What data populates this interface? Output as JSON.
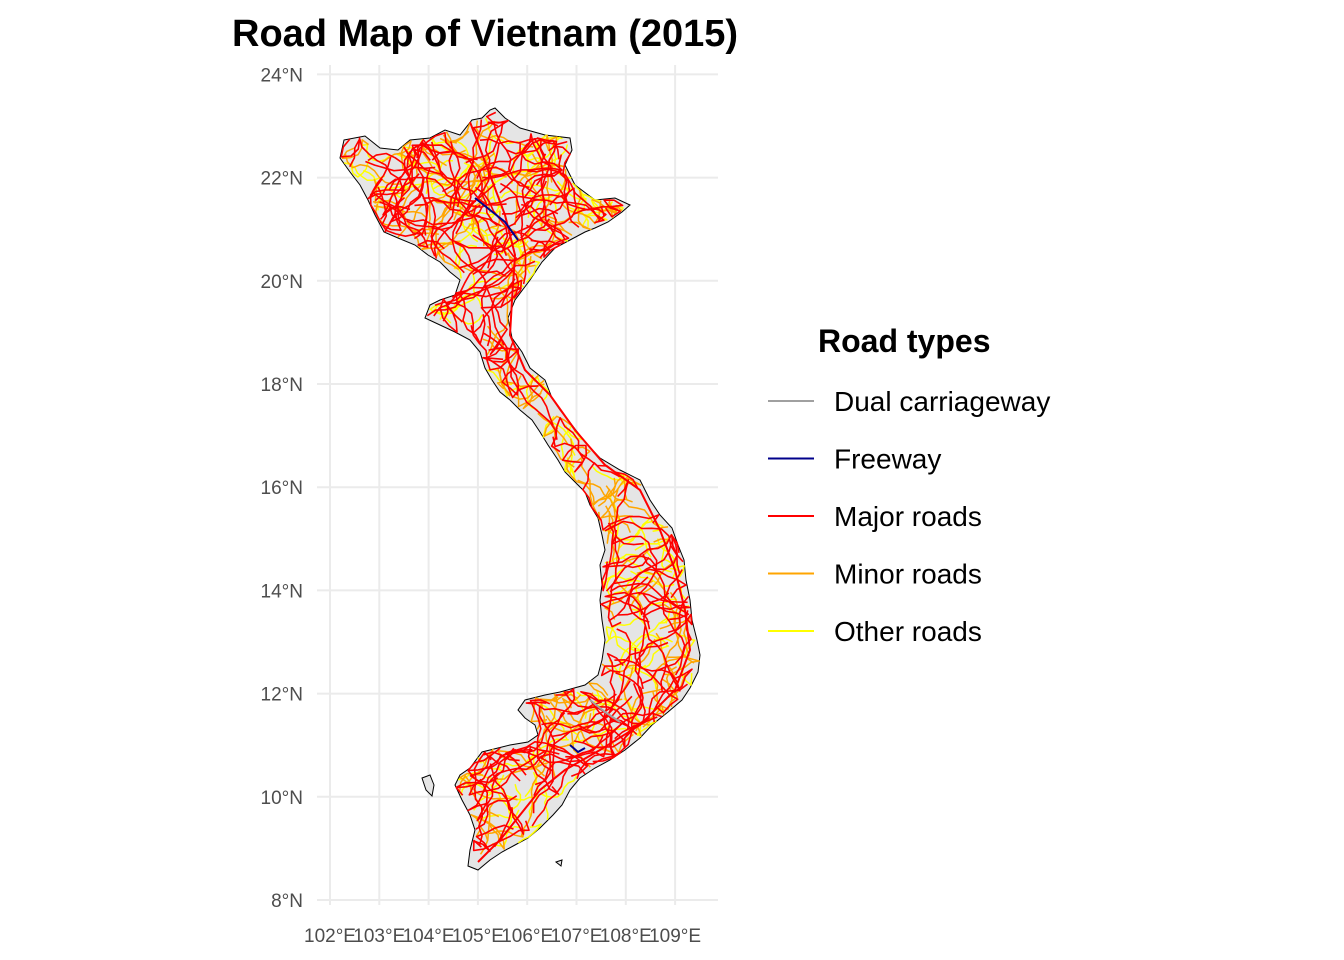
{
  "title": "Road Map of Vietnam (2015)",
  "map": {
    "lon_range": [
      102,
      109.6
    ],
    "lat_range": [
      8,
      24
    ],
    "grid": true,
    "x_ticks": [
      {
        "value": 102,
        "label": "102°E"
      },
      {
        "value": 103,
        "label": "103°E"
      },
      {
        "value": 104,
        "label": "104°E"
      },
      {
        "value": 105,
        "label": "105°E"
      },
      {
        "value": 106,
        "label": "106°E"
      },
      {
        "value": 107,
        "label": "107°E"
      },
      {
        "value": 108,
        "label": "108°E"
      },
      {
        "value": 109,
        "label": "109°E"
      }
    ],
    "y_ticks": [
      {
        "value": 8,
        "label": "8°N"
      },
      {
        "value": 10,
        "label": "10°N"
      },
      {
        "value": 12,
        "label": "12°N"
      },
      {
        "value": 14,
        "label": "14°N"
      },
      {
        "value": 16,
        "label": "16°N"
      },
      {
        "value": 18,
        "label": "18°N"
      },
      {
        "value": 20,
        "label": "20°N"
      },
      {
        "value": 22,
        "label": "22°N"
      },
      {
        "value": 24,
        "label": "24°N"
      }
    ],
    "land_color": "#e5e5e5",
    "border_color": "#000000"
  },
  "legend": {
    "title": "Road types",
    "placement": "right",
    "items": [
      {
        "label": "Dual carriageway",
        "color": "#a0a0a0"
      },
      {
        "label": "Freeway",
        "color": "#00008b"
      },
      {
        "label": "Major roads",
        "color": "#ff0000"
      },
      {
        "label": "Minor roads",
        "color": "#ffa500"
      },
      {
        "label": "Other roads",
        "color": "#ffff00"
      }
    ]
  }
}
